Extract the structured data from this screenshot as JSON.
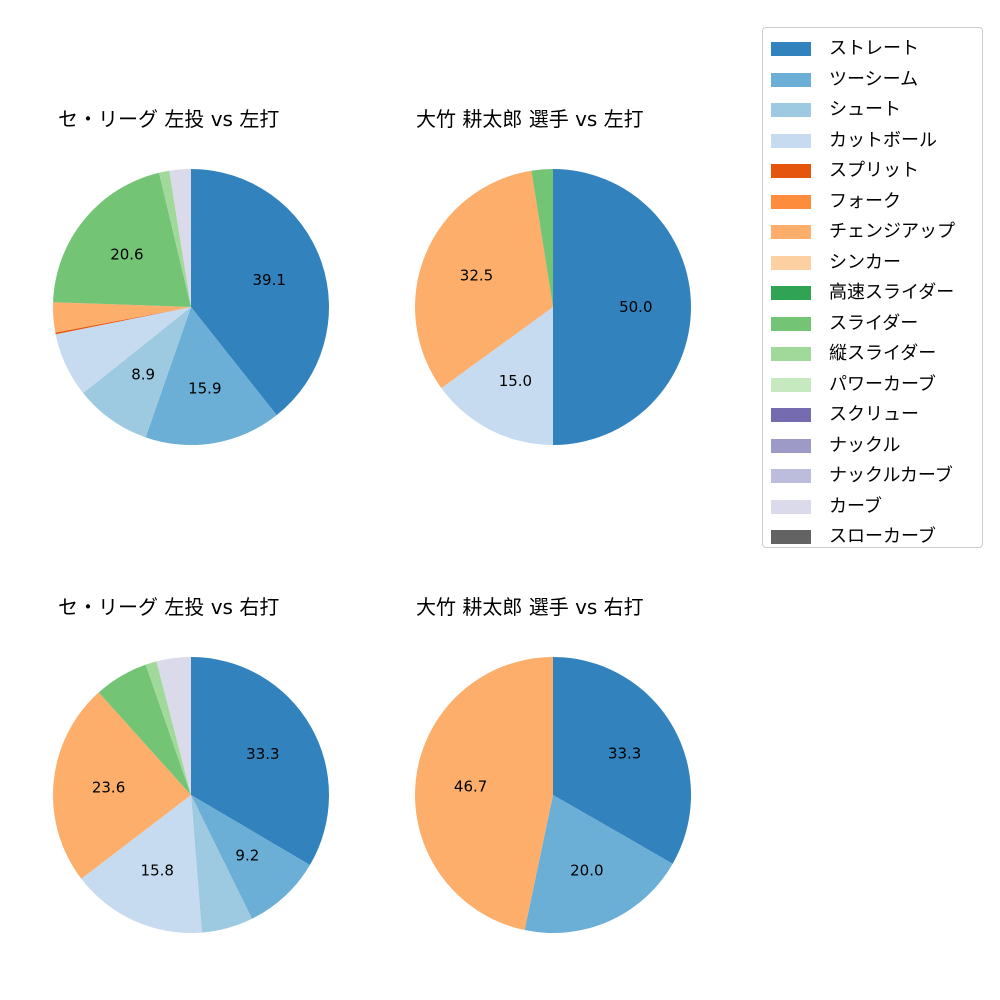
{
  "legend": {
    "entries": [
      {
        "label": "ストレート",
        "color": "#3182bd"
      },
      {
        "label": "ツーシーム",
        "color": "#6baed6"
      },
      {
        "label": "シュート",
        "color": "#9ecae1"
      },
      {
        "label": "カットボール",
        "color": "#c6dbef"
      },
      {
        "label": "スプリット",
        "color": "#e6550d"
      },
      {
        "label": "フォーク",
        "color": "#fd8d3c"
      },
      {
        "label": "チェンジアップ",
        "color": "#fdae6b"
      },
      {
        "label": "シンカー",
        "color": "#fdd0a2"
      },
      {
        "label": "高速スライダー",
        "color": "#31a354"
      },
      {
        "label": "スライダー",
        "color": "#74c476"
      },
      {
        "label": "縦スライダー",
        "color": "#a1d99b"
      },
      {
        "label": "パワーカーブ",
        "color": "#c7e9c0"
      },
      {
        "label": "スクリュー",
        "color": "#756bb1"
      },
      {
        "label": "ナックル",
        "color": "#9e9ac8"
      },
      {
        "label": "ナックルカーブ",
        "color": "#bcbddc"
      },
      {
        "label": "カーブ",
        "color": "#dadaeb"
      },
      {
        "label": "スローカーブ",
        "color": "#636363"
      }
    ]
  },
  "chart_data": [
    {
      "type": "pie",
      "title": "セ・リーグ 左投 vs 左打",
      "slices": [
        {
          "label": "ストレート",
          "value": 39.1,
          "color": "#3182bd",
          "show_label": true
        },
        {
          "label": "ツーシーム",
          "value": 15.9,
          "color": "#6baed6",
          "show_label": true
        },
        {
          "label": "シュート",
          "value": 8.9,
          "color": "#9ecae1",
          "show_label": true
        },
        {
          "label": "カットボール",
          "value": 7.5,
          "color": "#c6dbef",
          "show_label": false
        },
        {
          "label": "スプリット",
          "value": 0.2,
          "color": "#e6550d",
          "show_label": false
        },
        {
          "label": "チェンジアップ",
          "value": 3.5,
          "color": "#fdae6b",
          "show_label": false
        },
        {
          "label": "スライダー",
          "value": 20.6,
          "color": "#74c476",
          "show_label": true
        },
        {
          "label": "縦スライダー",
          "value": 1.2,
          "color": "#a1d99b",
          "show_label": false
        },
        {
          "label": "カーブ",
          "value": 2.5,
          "color": "#dadaeb",
          "show_label": false
        }
      ]
    },
    {
      "type": "pie",
      "title": "大竹 耕太郎 選手 vs 左打",
      "slices": [
        {
          "label": "ストレート",
          "value": 50.0,
          "color": "#3182bd",
          "show_label": true
        },
        {
          "label": "カットボール",
          "value": 15.0,
          "color": "#c6dbef",
          "show_label": true
        },
        {
          "label": "チェンジアップ",
          "value": 32.5,
          "color": "#fdae6b",
          "show_label": true
        },
        {
          "label": "スライダー",
          "value": 2.5,
          "color": "#74c476",
          "show_label": false
        }
      ]
    },
    {
      "type": "pie",
      "title": "セ・リーグ 左投 vs 右打",
      "slices": [
        {
          "label": "ストレート",
          "value": 33.3,
          "color": "#3182bd",
          "show_label": true
        },
        {
          "label": "ツーシーム",
          "value": 9.2,
          "color": "#6baed6",
          "show_label": true
        },
        {
          "label": "シュート",
          "value": 6.0,
          "color": "#9ecae1",
          "show_label": false
        },
        {
          "label": "カットボール",
          "value": 15.8,
          "color": "#c6dbef",
          "show_label": true
        },
        {
          "label": "チェンジアップ",
          "value": 23.6,
          "color": "#fdae6b",
          "show_label": true
        },
        {
          "label": "スライダー",
          "value": 6.3,
          "color": "#74c476",
          "show_label": false
        },
        {
          "label": "縦スライダー",
          "value": 1.3,
          "color": "#a1d99b",
          "show_label": false
        },
        {
          "label": "カーブ",
          "value": 4.0,
          "color": "#dadaeb",
          "show_label": false
        }
      ]
    },
    {
      "type": "pie",
      "title": "大竹 耕太郎 選手 vs 右打",
      "slices": [
        {
          "label": "ストレート",
          "value": 33.3,
          "color": "#3182bd",
          "show_label": true
        },
        {
          "label": "ツーシーム",
          "value": 20.0,
          "color": "#6baed6",
          "show_label": true
        },
        {
          "label": "チェンジアップ",
          "value": 46.7,
          "color": "#fdae6b",
          "show_label": true
        }
      ]
    }
  ]
}
